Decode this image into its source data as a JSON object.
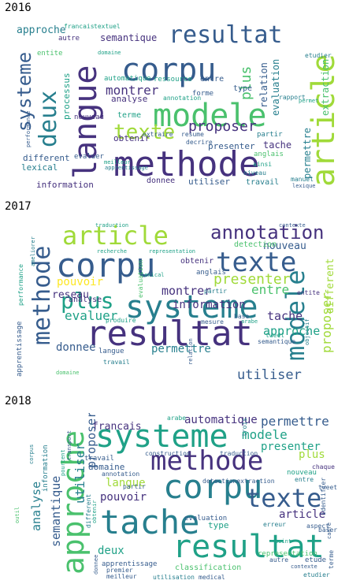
{
  "panels": [
    {
      "year": "2016",
      "words": [
        "corpu",
        "methode",
        "modele",
        "langue",
        "article",
        "resultat",
        "deux",
        "texte",
        "systeme",
        "proposer",
        "approche",
        "montrer",
        "plus",
        "semantique",
        "extraction",
        "relation",
        "evaluation",
        "permettre",
        "tache",
        "presenter",
        "different",
        "information",
        "analyse",
        "lexical",
        "obtenir",
        "donnee",
        "utiliser",
        "travail",
        "automatique",
        "ressource",
        "entre",
        "type",
        "anglais",
        "nouveau",
        "terme",
        "forme",
        "ainsi",
        "rapport",
        "francais",
        "textuel",
        "autre",
        "entite",
        "processus",
        "niveau",
        "partir",
        "decrire",
        "etudier",
        "performance",
        "annotation",
        "extraire",
        "resume",
        "permet",
        "evaluer",
        "manuel",
        "lexique",
        "meilleur",
        "domaine",
        "apprentissage"
      ]
    },
    {
      "year": "2017",
      "words": [
        "corpu",
        "systeme",
        "resultat",
        "texte",
        "article",
        "methode",
        "modele",
        "annotation",
        "plus",
        "presenter",
        "proposer",
        "montrer",
        "reseau",
        "approche",
        "evaluer",
        "information",
        "utiliser",
        "tache",
        "pouvoir",
        "permettre",
        "nouveau",
        "donnee",
        "analyse",
        "langue",
        "detection",
        "obtenir",
        "entre",
        "different",
        "lexical",
        "partir",
        "entite",
        "traduction",
        "contexte",
        "apprentissage",
        "performance",
        "evaluation",
        "ameliorer",
        "relation",
        "travail",
        "domaine",
        "mesure",
        "base",
        "produire",
        "tweet",
        "semantique",
        "objectif",
        "anglais",
        "arabe",
        "recherche",
        "representation",
        "construire",
        "domaine",
        "ainsi"
      ]
    },
    {
      "year": "2018",
      "words": [
        "corpu",
        "systeme",
        "methode",
        "tache",
        "resultat",
        "approche",
        "texte",
        "modele",
        "semantique",
        "utiliser",
        "analyse",
        "proposer",
        "francais",
        "automatique",
        "permettre",
        "presenter",
        "plus",
        "article",
        "langue",
        "pouvoir",
        "domaine",
        "deux",
        "annotation",
        "evaluation",
        "type",
        "classification",
        "detectionextraction",
        "apprentissage",
        "information",
        "travail",
        "construction",
        "traduction",
        "nouveau",
        "entre",
        "aspect",
        "representation",
        "etude",
        "autre",
        "etudier",
        "premier",
        "meilleur",
        "utilisation",
        "medical",
        "terme",
        "arabe",
        "trois",
        "chaque",
        "identifier",
        "baser",
        "erreur",
        "point",
        "tweet",
        "partir",
        "different",
        "obtenir",
        "donnee",
        "pourcent",
        "transport",
        "corpus",
        "outil",
        "contexte",
        "cadre"
      ]
    }
  ]
}
